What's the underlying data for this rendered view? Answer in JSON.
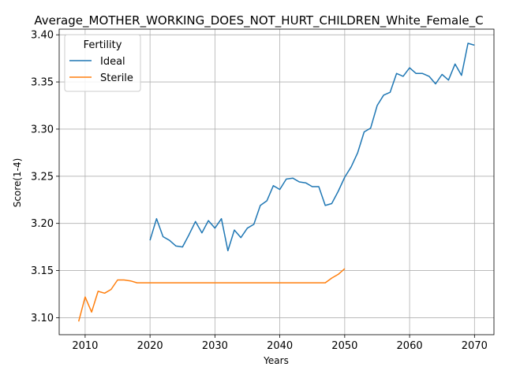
{
  "chart_data": {
    "type": "line",
    "title": "Average_MOTHER_WORKING_DOES_NOT_HURT_CHILDREN_White_Female_C",
    "xlabel": "Years",
    "ylabel": "Score(1-4)",
    "xlim": [
      2006,
      2073
    ],
    "ylim": [
      3.082,
      3.406
    ],
    "xticks": [
      2010,
      2020,
      2030,
      2040,
      2050,
      2060,
      2070
    ],
    "yticks": [
      3.1,
      3.15,
      3.2,
      3.25,
      3.3,
      3.35,
      3.4
    ],
    "ytick_labels": [
      "3.10",
      "3.15",
      "3.20",
      "3.25",
      "3.30",
      "3.35",
      "3.40"
    ],
    "grid": true,
    "legend": {
      "title": "Fertility",
      "placement": "upper-left"
    },
    "series": [
      {
        "name": "Ideal",
        "color": "#1f77b4",
        "x": [
          2020,
          2021,
          2022,
          2023,
          2024,
          2025,
          2026,
          2027,
          2028,
          2029,
          2030,
          2031,
          2032,
          2033,
          2034,
          2035,
          2036,
          2037,
          2038,
          2039,
          2040,
          2041,
          2042,
          2043,
          2044,
          2045,
          2046,
          2047,
          2048,
          2049,
          2050,
          2051,
          2052,
          2053,
          2054,
          2055,
          2056,
          2057,
          2058,
          2059,
          2060,
          2061,
          2062,
          2063,
          2064,
          2065,
          2066,
          2067,
          2068,
          2069,
          2070
        ],
        "values": [
          3.182,
          3.205,
          3.186,
          3.182,
          3.176,
          3.175,
          3.188,
          3.202,
          3.19,
          3.203,
          3.195,
          3.205,
          3.171,
          3.193,
          3.185,
          3.195,
          3.199,
          3.219,
          3.224,
          3.24,
          3.236,
          3.247,
          3.248,
          3.244,
          3.243,
          3.239,
          3.239,
          3.219,
          3.221,
          3.234,
          3.249,
          3.26,
          3.275,
          3.297,
          3.301,
          3.325,
          3.336,
          3.339,
          3.359,
          3.356,
          3.365,
          3.359,
          3.359,
          3.356,
          3.348,
          3.358,
          3.352,
          3.369,
          3.357,
          3.391,
          3.389
        ]
      },
      {
        "name": "Sterile",
        "color": "#ff7f0e",
        "x": [
          2009,
          2010,
          2011,
          2012,
          2013,
          2014,
          2015,
          2016,
          2017,
          2018,
          2019,
          2020,
          2021,
          2022,
          2023,
          2024,
          2025,
          2026,
          2027,
          2028,
          2029,
          2030,
          2031,
          2032,
          2033,
          2034,
          2035,
          2036,
          2037,
          2038,
          2039,
          2040,
          2041,
          2042,
          2043,
          2044,
          2045,
          2046,
          2047,
          2048,
          2049,
          2050
        ],
        "values": [
          3.096,
          3.122,
          3.106,
          3.128,
          3.126,
          3.13,
          3.14,
          3.14,
          3.139,
          3.137,
          3.137,
          3.137,
          3.137,
          3.137,
          3.137,
          3.137,
          3.137,
          3.137,
          3.137,
          3.137,
          3.137,
          3.137,
          3.137,
          3.137,
          3.137,
          3.137,
          3.137,
          3.137,
          3.137,
          3.137,
          3.137,
          3.137,
          3.137,
          3.137,
          3.137,
          3.137,
          3.137,
          3.137,
          3.137,
          3.142,
          3.146,
          3.152
        ]
      }
    ]
  }
}
